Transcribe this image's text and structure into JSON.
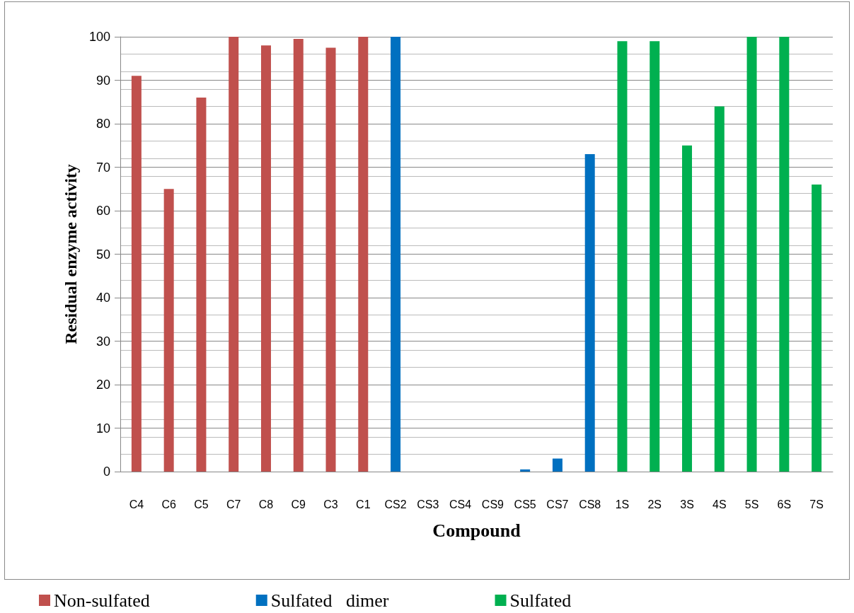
{
  "chart_data": {
    "type": "bar",
    "xlabel": "Compound",
    "ylabel": "Residual enzyme activity",
    "categories": [
      "C4",
      "C6",
      "C5",
      "C7",
      "C8",
      "C9",
      "C3",
      "C1",
      "CS2",
      "CS3",
      "CS4",
      "CS9",
      "CS5",
      "CS7",
      "CS8",
      "1S",
      "2S",
      "3S",
      "4S",
      "5S",
      "6S",
      "7S"
    ],
    "series": [
      {
        "name": "Non-sulfated",
        "color": "#c0504d",
        "values": [
          91,
          65,
          86,
          100,
          98,
          99.5,
          97.5,
          100,
          null,
          null,
          null,
          null,
          null,
          null,
          null,
          null,
          null,
          null,
          null,
          null,
          null,
          null
        ]
      },
      {
        "name": "Sulfated   dimer",
        "color": "#0070c0",
        "values": [
          null,
          null,
          null,
          null,
          null,
          null,
          null,
          null,
          100,
          0,
          0,
          0,
          0.5,
          3,
          73,
          null,
          null,
          null,
          null,
          null,
          null,
          null
        ]
      },
      {
        "name": "Sulfated",
        "color": "#00b050",
        "values": [
          null,
          null,
          null,
          null,
          null,
          null,
          null,
          null,
          null,
          null,
          null,
          null,
          null,
          null,
          null,
          99,
          99,
          75,
          84,
          100,
          100,
          66
        ]
      }
    ],
    "ylim": [
      0,
      100
    ],
    "yticks": [
      0,
      10,
      20,
      30,
      40,
      50,
      60,
      70,
      80,
      90,
      100
    ],
    "grid": "y",
    "legend": "bottom"
  }
}
